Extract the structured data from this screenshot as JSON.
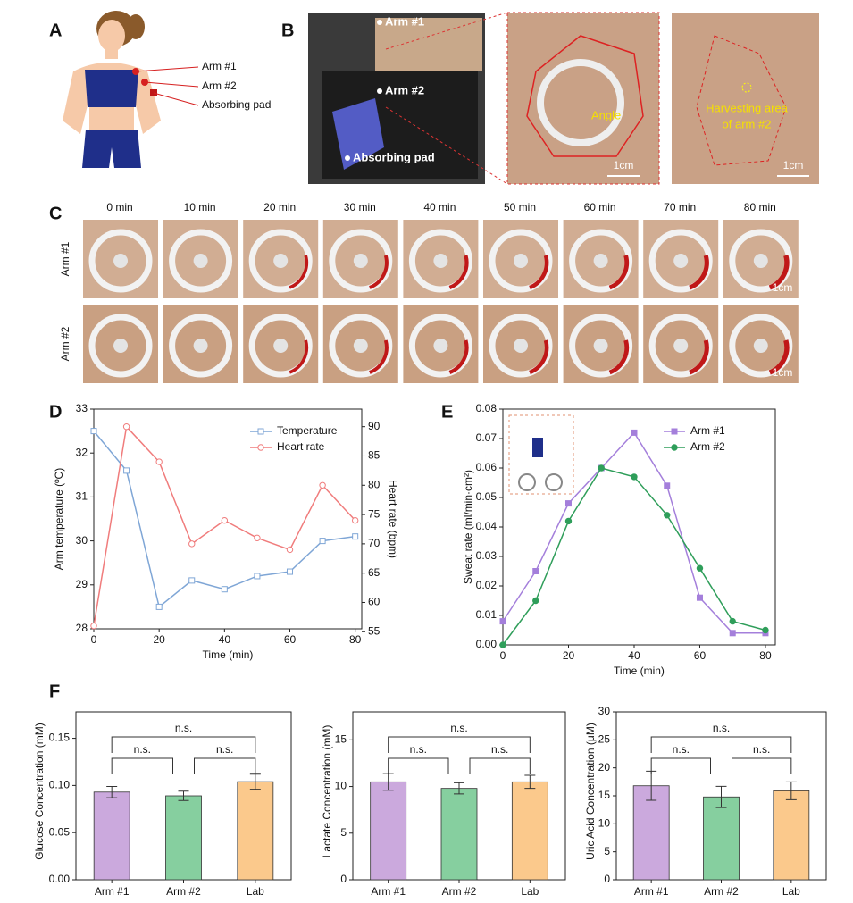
{
  "panel_labels": [
    "A",
    "B",
    "C",
    "D",
    "E",
    "F"
  ],
  "panel_a": {
    "labels": [
      "Arm #1",
      "Arm #2",
      "Absorbing pad"
    ]
  },
  "panel_b": {
    "labels": [
      "Arm #1",
      "Arm #2",
      "Absorbing pad"
    ],
    "angle": "Angle",
    "harvest_lines": [
      "Harvesting area",
      "of arm #2"
    ],
    "scale_bars": [
      "1cm",
      "1cm"
    ]
  },
  "panel_c": {
    "times": [
      "0 min",
      "10 min",
      "20 min",
      "30 min",
      "40 min",
      "50 min",
      "60 min",
      "70 min",
      "80 min"
    ],
    "rows": [
      "Arm #1",
      "Arm #2"
    ],
    "scale_bars": [
      "1cm",
      "1cm"
    ]
  },
  "chart_data": [
    {
      "type": "line",
      "x": [
        0,
        10,
        20,
        30,
        40,
        50,
        60,
        70,
        80
      ],
      "xlim": [
        0,
        82
      ],
      "xticks": [
        0,
        20,
        40,
        60,
        80
      ],
      "ylim": [
        28,
        33
      ],
      "yticks": [
        28,
        29,
        30,
        31,
        32,
        33
      ],
      "y2lim": [
        55.5,
        93
      ],
      "y2ticks": [
        55,
        60,
        65,
        70,
        75,
        80,
        85,
        90
      ],
      "xlabel": "Time (min)",
      "ylabel": "Arm temperature (ºC)",
      "y2label": "Heart rate (bpm)",
      "legend": "upper right",
      "series": [
        {
          "name": "Temperature",
          "color": "#7fa6d6",
          "marker": "square",
          "fill": false,
          "values": [
            32.5,
            31.6,
            28.5,
            29.1,
            28.9,
            29.2,
            29.3,
            30.0,
            30.1
          ]
        },
        {
          "name": "Heart rate",
          "color": "#f07c7c",
          "marker": "circle",
          "fill": false,
          "axis": "y2",
          "values": [
            56,
            90,
            84,
            70,
            74,
            71,
            69,
            80,
            74
          ]
        }
      ]
    },
    {
      "type": "line",
      "x": [
        0,
        10,
        20,
        30,
        40,
        50,
        60,
        70,
        80
      ],
      "xlim": [
        0,
        83
      ],
      "xticks": [
        0,
        20,
        40,
        60,
        80
      ],
      "ylim": [
        0,
        0.08
      ],
      "yticks": [
        {
          "value": 0,
          "label": "0.00"
        },
        {
          "value": 0.01,
          "label": "0.01"
        },
        {
          "value": 0.02,
          "label": "0.02"
        },
        {
          "value": 0.03,
          "label": "0.03"
        },
        {
          "value": 0.04,
          "label": "0.04"
        },
        {
          "value": 0.05,
          "label": "0.05"
        },
        {
          "value": 0.06,
          "label": "0.06"
        },
        {
          "value": 0.07,
          "label": "0.07"
        },
        {
          "value": 0.08,
          "label": "0.08"
        }
      ],
      "xlabel": "Time (min)",
      "ylabel": "Sweat rate (ml/min·cm²)",
      "legend": "upper right",
      "series": [
        {
          "name": "Arm #1",
          "color": "#a47fdb",
          "marker": "square",
          "fill": true,
          "values": [
            0.008,
            0.025,
            0.048,
            0.06,
            0.072,
            0.054,
            0.016,
            0.004,
            0.004
          ]
        },
        {
          "name": "Arm #2",
          "color": "#2f9e5a",
          "marker": "circle",
          "fill": true,
          "values": [
            0.0,
            0.015,
            0.042,
            0.06,
            0.057,
            0.044,
            0.026,
            0.008,
            0.005
          ]
        }
      ]
    },
    {
      "type": "bar",
      "categories": [
        "Arm #1",
        "Arm #2",
        "Lab"
      ],
      "values": [
        0.093,
        0.089,
        0.104
      ],
      "errors": [
        0.006,
        0.005,
        0.008
      ],
      "colors": [
        "#cba9dd",
        "#86cf9f",
        "#fbc98c"
      ],
      "ylim": [
        0,
        0.178
      ],
      "yticks": [
        {
          "value": 0,
          "label": "0.00"
        },
        {
          "value": 0.05,
          "label": "0.05"
        },
        {
          "value": 0.1,
          "label": "0.10"
        },
        {
          "value": 0.15,
          "label": "0.15"
        }
      ],
      "ylabel": "Glucose Concentration (mM)",
      "annotations": [
        "n.s.",
        "n.s.",
        "n.s."
      ]
    },
    {
      "type": "bar",
      "categories": [
        "Arm #1",
        "Arm #2",
        "Lab"
      ],
      "values": [
        10.5,
        9.8,
        10.5
      ],
      "errors": [
        0.9,
        0.6,
        0.7
      ],
      "colors": [
        "#cba9dd",
        "#86cf9f",
        "#fbc98c"
      ],
      "ylim": [
        0,
        18
      ],
      "yticks": [
        0,
        5,
        10,
        15
      ],
      "ylabel": "Lactate Concentration (mM)",
      "annotations": [
        "n.s.",
        "n.s.",
        "n.s."
      ]
    },
    {
      "type": "bar",
      "categories": [
        "Arm #1",
        "Arm #2",
        "Lab"
      ],
      "values": [
        16.8,
        14.8,
        15.9
      ],
      "errors": [
        2.6,
        1.9,
        1.6
      ],
      "colors": [
        "#cba9dd",
        "#86cf9f",
        "#fbc98c"
      ],
      "ylim": [
        0,
        30
      ],
      "yticks": [
        0,
        5,
        10,
        15,
        20,
        25,
        30
      ],
      "ylabel": "Uric Acid Concentration (μM)",
      "annotations": [
        "n.s.",
        "n.s.",
        "n.s."
      ]
    }
  ]
}
